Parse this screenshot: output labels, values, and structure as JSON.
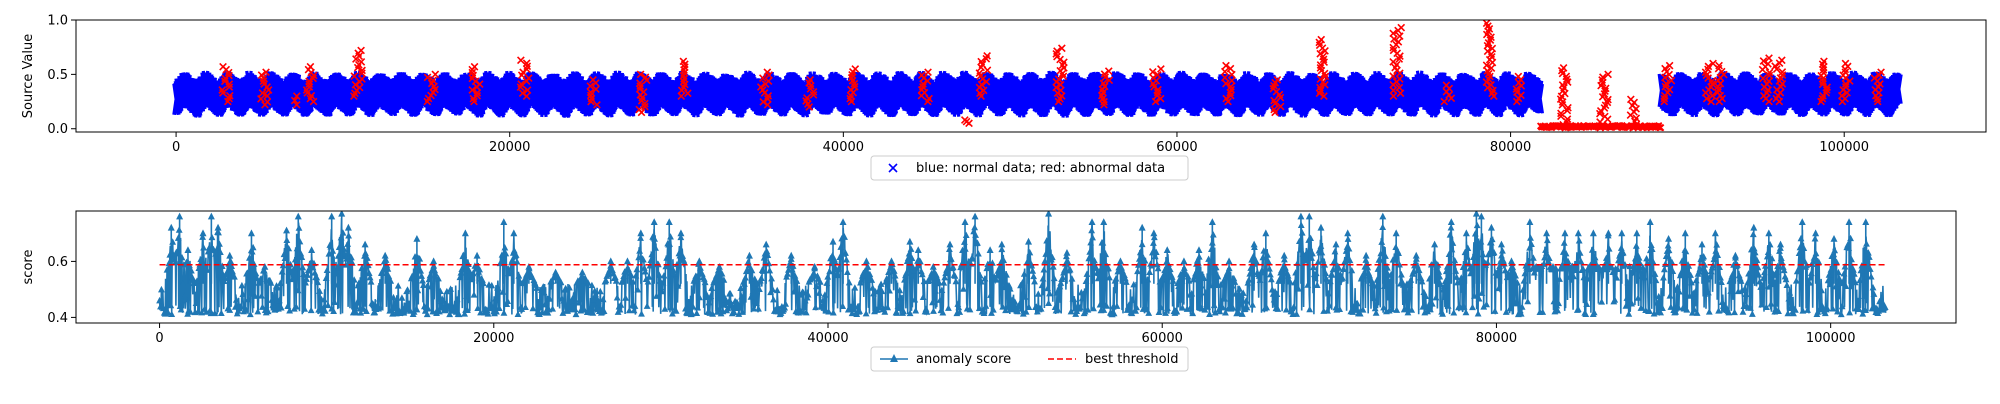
{
  "chart_data": [
    {
      "type": "scatter",
      "title": "",
      "xlabel": "",
      "ylabel": "Source Value",
      "xlim": [
        -6000,
        108500
      ],
      "ylim": [
        -0.03,
        1.0
      ],
      "x_ticks": [
        0,
        20000,
        40000,
        60000,
        80000,
        100000
      ],
      "x_tick_labels": [
        "0",
        "20000",
        "40000",
        "60000",
        "80000",
        "100000"
      ],
      "y_ticks": [
        0.0,
        0.5,
        1.0
      ],
      "y_tick_labels": [
        "0.0",
        "0.5",
        "1.0"
      ],
      "marker": "x",
      "legend": {
        "position": "below-center",
        "entries": [
          {
            "label": "blue: normal data; red: abnormal data",
            "color": "#0000ff",
            "marker": "x"
          }
        ]
      },
      "series": [
        {
          "role": "normal",
          "color": "#0000ff",
          "x_range": [
            0,
            103300
          ],
          "period": 1300,
          "baseline_low": 0.13,
          "baseline_high": 0.48,
          "gaps": [
            [
              81800,
              89000
            ]
          ]
        },
        {
          "role": "abnormal",
          "color": "#ff0000",
          "clusters": [
            {
              "x": 3000,
              "low": 0.25,
              "high": 0.57
            },
            {
              "x": 5300,
              "low": 0.22,
              "high": 0.52
            },
            {
              "x": 7000,
              "low": 0.22,
              "high": 0.3
            },
            {
              "x": 8000,
              "low": 0.25,
              "high": 0.57
            },
            {
              "x": 10900,
              "low": 0.3,
              "high": 0.72
            },
            {
              "x": 15300,
              "low": 0.25,
              "high": 0.5
            },
            {
              "x": 18000,
              "low": 0.25,
              "high": 0.57
            },
            {
              "x": 20900,
              "low": 0.3,
              "high": 0.63
            },
            {
              "x": 25000,
              "low": 0.22,
              "high": 0.45
            },
            {
              "x": 28000,
              "low": 0.15,
              "high": 0.5
            },
            {
              "x": 30500,
              "low": 0.3,
              "high": 0.62
            },
            {
              "x": 35300,
              "low": 0.22,
              "high": 0.52
            },
            {
              "x": 38000,
              "low": 0.2,
              "high": 0.45
            },
            {
              "x": 40500,
              "low": 0.25,
              "high": 0.55
            },
            {
              "x": 44900,
              "low": 0.25,
              "high": 0.52
            },
            {
              "x": 47300,
              "low": 0.05,
              "high": 0.08
            },
            {
              "x": 48400,
              "low": 0.3,
              "high": 0.67
            },
            {
              "x": 53000,
              "low": 0.25,
              "high": 0.74
            },
            {
              "x": 55700,
              "low": 0.22,
              "high": 0.53
            },
            {
              "x": 58800,
              "low": 0.25,
              "high": 0.55
            },
            {
              "x": 63100,
              "low": 0.25,
              "high": 0.58
            },
            {
              "x": 66000,
              "low": 0.15,
              "high": 0.45
            },
            {
              "x": 68700,
              "low": 0.3,
              "high": 0.82
            },
            {
              "x": 73200,
              "low": 0.3,
              "high": 0.93
            },
            {
              "x": 76200,
              "low": 0.25,
              "high": 0.4
            },
            {
              "x": 78800,
              "low": 0.3,
              "high": 0.97
            },
            {
              "x": 80400,
              "low": 0.25,
              "high": 0.48
            },
            {
              "x": 83200,
              "low": 0.01,
              "high": 0.56
            },
            {
              "x": 85600,
              "low": 0.01,
              "high": 0.5
            },
            {
              "x": 87300,
              "low": 0.01,
              "high": 0.27
            },
            {
              "x": 89400,
              "low": 0.25,
              "high": 0.58
            },
            {
              "x": 91900,
              "low": 0.25,
              "high": 0.6
            },
            {
              "x": 92600,
              "low": 0.25,
              "high": 0.58
            },
            {
              "x": 95300,
              "low": 0.25,
              "high": 0.65
            },
            {
              "x": 96100,
              "low": 0.25,
              "high": 0.63
            },
            {
              "x": 98800,
              "low": 0.25,
              "high": 0.62
            },
            {
              "x": 100100,
              "low": 0.25,
              "high": 0.6
            },
            {
              "x": 102000,
              "low": 0.25,
              "high": 0.52
            }
          ],
          "flat_block": {
            "x_range": [
              81800,
              89000
            ],
            "y": 0.01
          }
        }
      ]
    },
    {
      "type": "line",
      "title": "",
      "xlabel": "",
      "ylabel": "score",
      "xlim": [
        -5000,
        107500
      ],
      "ylim": [
        0.38,
        0.78
      ],
      "x_ticks": [
        0,
        20000,
        40000,
        60000,
        80000,
        100000
      ],
      "x_tick_labels": [
        "0",
        "20000",
        "40000",
        "60000",
        "80000",
        "100000"
      ],
      "y_ticks": [
        0.4,
        0.6
      ],
      "y_tick_labels": [
        "0.4",
        "0.6"
      ],
      "legend": {
        "position": "below-center",
        "entries": [
          {
            "label": "anomaly score",
            "color": "#1f77b4",
            "style": "solid-triangle"
          },
          {
            "label": "best threshold",
            "color": "#ff0000",
            "style": "dashed"
          }
        ]
      },
      "series": [
        {
          "name": "anomaly score",
          "color": "#1f77b4",
          "x_range": [
            0,
            103300
          ],
          "baseline_low": 0.41,
          "baseline_high": 0.52,
          "plateau": {
            "x_range": [
              81800,
              89000
            ],
            "y": 0.575
          },
          "peaks": [
            {
              "x": 700,
              "y": 0.72
            },
            {
              "x": 1200,
              "y": 0.76
            },
            {
              "x": 1700,
              "y": 0.64
            },
            {
              "x": 2600,
              "y": 0.7
            },
            {
              "x": 3100,
              "y": 0.76
            },
            {
              "x": 3500,
              "y": 0.72
            },
            {
              "x": 4200,
              "y": 0.62
            },
            {
              "x": 5500,
              "y": 0.7
            },
            {
              "x": 6300,
              "y": 0.58
            },
            {
              "x": 7600,
              "y": 0.71
            },
            {
              "x": 8300,
              "y": 0.76
            },
            {
              "x": 9100,
              "y": 0.64
            },
            {
              "x": 10300,
              "y": 0.76
            },
            {
              "x": 10900,
              "y": 0.77
            },
            {
              "x": 11300,
              "y": 0.72
            },
            {
              "x": 12300,
              "y": 0.66
            },
            {
              "x": 13500,
              "y": 0.62
            },
            {
              "x": 15400,
              "y": 0.68
            },
            {
              "x": 16400,
              "y": 0.6
            },
            {
              "x": 18300,
              "y": 0.7
            },
            {
              "x": 19000,
              "y": 0.62
            },
            {
              "x": 20600,
              "y": 0.74
            },
            {
              "x": 21200,
              "y": 0.7
            },
            {
              "x": 22100,
              "y": 0.58
            },
            {
              "x": 23700,
              "y": 0.56
            },
            {
              "x": 25300,
              "y": 0.56
            },
            {
              "x": 27000,
              "y": 0.6
            },
            {
              "x": 28000,
              "y": 0.6
            },
            {
              "x": 28800,
              "y": 0.7
            },
            {
              "x": 29600,
              "y": 0.74
            },
            {
              "x": 30500,
              "y": 0.74
            },
            {
              "x": 31200,
              "y": 0.7
            },
            {
              "x": 32300,
              "y": 0.6
            },
            {
              "x": 33500,
              "y": 0.58
            },
            {
              "x": 35300,
              "y": 0.62
            },
            {
              "x": 36300,
              "y": 0.66
            },
            {
              "x": 37800,
              "y": 0.62
            },
            {
              "x": 39200,
              "y": 0.58
            },
            {
              "x": 40300,
              "y": 0.67
            },
            {
              "x": 40900,
              "y": 0.74
            },
            {
              "x": 42300,
              "y": 0.6
            },
            {
              "x": 43800,
              "y": 0.6
            },
            {
              "x": 44900,
              "y": 0.67
            },
            {
              "x": 45400,
              "y": 0.64
            },
            {
              "x": 46300,
              "y": 0.58
            },
            {
              "x": 47300,
              "y": 0.66
            },
            {
              "x": 48200,
              "y": 0.74
            },
            {
              "x": 48800,
              "y": 0.76
            },
            {
              "x": 49700,
              "y": 0.64
            },
            {
              "x": 50400,
              "y": 0.66
            },
            {
              "x": 52000,
              "y": 0.67
            },
            {
              "x": 53200,
              "y": 0.77
            },
            {
              "x": 54300,
              "y": 0.63
            },
            {
              "x": 55800,
              "y": 0.74
            },
            {
              "x": 56500,
              "y": 0.74
            },
            {
              "x": 57500,
              "y": 0.6
            },
            {
              "x": 58800,
              "y": 0.72
            },
            {
              "x": 59500,
              "y": 0.7
            },
            {
              "x": 60300,
              "y": 0.64
            },
            {
              "x": 61300,
              "y": 0.6
            },
            {
              "x": 62200,
              "y": 0.64
            },
            {
              "x": 63000,
              "y": 0.74
            },
            {
              "x": 64000,
              "y": 0.6
            },
            {
              "x": 65500,
              "y": 0.66
            },
            {
              "x": 66200,
              "y": 0.7
            },
            {
              "x": 67300,
              "y": 0.62
            },
            {
              "x": 68300,
              "y": 0.76
            },
            {
              "x": 68800,
              "y": 0.76
            },
            {
              "x": 69500,
              "y": 0.72
            },
            {
              "x": 70400,
              "y": 0.66
            },
            {
              "x": 71100,
              "y": 0.7
            },
            {
              "x": 72200,
              "y": 0.62
            },
            {
              "x": 73200,
              "y": 0.76
            },
            {
              "x": 74000,
              "y": 0.7
            },
            {
              "x": 75200,
              "y": 0.62
            },
            {
              "x": 76300,
              "y": 0.66
            },
            {
              "x": 77300,
              "y": 0.74
            },
            {
              "x": 78200,
              "y": 0.7
            },
            {
              "x": 78800,
              "y": 0.77
            },
            {
              "x": 79100,
              "y": 0.76
            },
            {
              "x": 79700,
              "y": 0.72
            },
            {
              "x": 80300,
              "y": 0.66
            },
            {
              "x": 80900,
              "y": 0.6
            },
            {
              "x": 82000,
              "y": 0.74
            },
            {
              "x": 83000,
              "y": 0.7
            },
            {
              "x": 84100,
              "y": 0.7
            },
            {
              "x": 84900,
              "y": 0.7
            },
            {
              "x": 85800,
              "y": 0.7
            },
            {
              "x": 86700,
              "y": 0.7
            },
            {
              "x": 87500,
              "y": 0.7
            },
            {
              "x": 88400,
              "y": 0.7
            },
            {
              "x": 89200,
              "y": 0.74
            },
            {
              "x": 90300,
              "y": 0.68
            },
            {
              "x": 91300,
              "y": 0.7
            },
            {
              "x": 92300,
              "y": 0.66
            },
            {
              "x": 93100,
              "y": 0.7
            },
            {
              "x": 94300,
              "y": 0.62
            },
            {
              "x": 95400,
              "y": 0.72
            },
            {
              "x": 96300,
              "y": 0.7
            },
            {
              "x": 97000,
              "y": 0.66
            },
            {
              "x": 98300,
              "y": 0.74
            },
            {
              "x": 99100,
              "y": 0.7
            },
            {
              "x": 100200,
              "y": 0.68
            },
            {
              "x": 101100,
              "y": 0.74
            },
            {
              "x": 102100,
              "y": 0.74
            }
          ]
        },
        {
          "name": "best threshold",
          "color": "#ff0000",
          "style": "dashed",
          "x_range": [
            0,
            103300
          ],
          "y": 0.588
        }
      ]
    }
  ]
}
